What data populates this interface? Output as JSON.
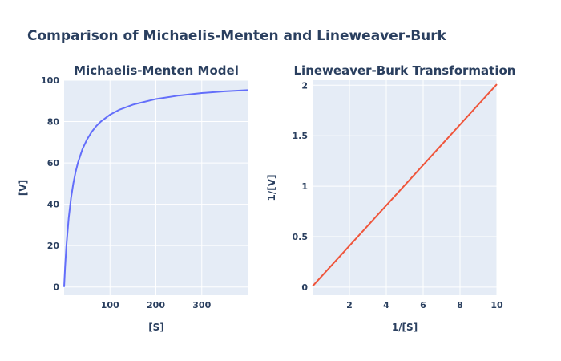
{
  "title": "Comparison of Michaelis-Menten and Lineweaver-Burk",
  "chart_data": [
    {
      "type": "line",
      "title": "Michaelis-Menten Model",
      "xlabel": "[S]",
      "ylabel": "[V]",
      "xlim": [
        0,
        400
      ],
      "ylim": [
        -4,
        100
      ],
      "xticks": [
        100,
        200,
        300
      ],
      "yticks": [
        0,
        20,
        40,
        60,
        80,
        100
      ],
      "grid": true,
      "legend": "none",
      "color": "#636efa",
      "series": [
        {
          "x": [
            0,
            2,
            5,
            10,
            15,
            20,
            25,
            30,
            40,
            50,
            60,
            70,
            80,
            100,
            120,
            150,
            200,
            250,
            300,
            350,
            400
          ],
          "y": [
            0,
            9.1,
            20,
            33.3,
            42.9,
            50,
            55.6,
            60,
            66.7,
            71.4,
            75,
            77.8,
            80,
            83.3,
            85.7,
            88.2,
            90.9,
            92.6,
            93.8,
            94.6,
            95.2
          ]
        }
      ]
    },
    {
      "type": "line",
      "title": "Lineweaver-Burk Transformation",
      "xlabel": "1/[S]",
      "ylabel": "1/[V]",
      "xlim": [
        0,
        10
      ],
      "ylim": [
        -0.08,
        2.05
      ],
      "xticks": [
        2,
        4,
        6,
        8,
        10
      ],
      "yticks": [
        0,
        0.5,
        1,
        1.5,
        2
      ],
      "grid": true,
      "legend": "none",
      "color": "#ef553b",
      "series": [
        {
          "x": [
            0.0025,
            10
          ],
          "y": [
            0.01,
            2.01
          ]
        }
      ]
    }
  ]
}
